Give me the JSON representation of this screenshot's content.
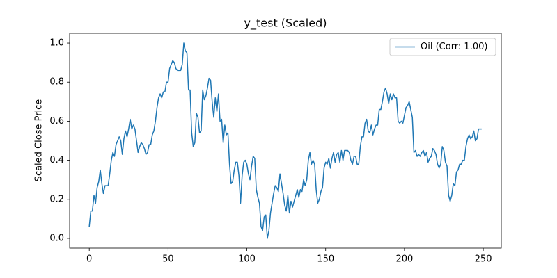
{
  "chart_data": {
    "type": "line",
    "title": "y_test (Scaled)",
    "ylabel": "Scaled Close Price",
    "x": [
      0,
      1,
      2,
      3,
      4,
      5,
      6,
      7,
      8,
      9,
      10,
      11,
      12,
      13,
      14,
      15,
      16,
      17,
      18,
      19,
      20,
      21,
      22,
      23,
      24,
      25,
      26,
      27,
      28,
      29,
      30,
      31,
      32,
      33,
      34,
      35,
      36,
      37,
      38,
      39,
      40,
      41,
      42,
      43,
      44,
      45,
      46,
      47,
      48,
      49,
      50,
      51,
      52,
      53,
      54,
      55,
      56,
      57,
      58,
      59,
      60,
      61,
      62,
      63,
      64,
      65,
      66,
      67,
      68,
      69,
      70,
      71,
      72,
      73,
      74,
      75,
      76,
      77,
      78,
      79,
      80,
      81,
      82,
      83,
      84,
      85,
      86,
      87,
      88,
      89,
      90,
      91,
      92,
      93,
      94,
      95,
      96,
      97,
      98,
      99,
      100,
      101,
      102,
      103,
      104,
      105,
      106,
      107,
      108,
      109,
      110,
      111,
      112,
      113,
      114,
      115,
      116,
      117,
      118,
      119,
      120,
      121,
      122,
      123,
      124,
      125,
      126,
      127,
      128,
      129,
      130,
      131,
      132,
      133,
      134,
      135,
      136,
      137,
      138,
      139,
      140,
      141,
      142,
      143,
      144,
      145,
      146,
      147,
      148,
      149,
      150,
      151,
      152,
      153,
      154,
      155,
      156,
      157,
      158,
      159,
      160,
      161,
      162,
      163,
      164,
      165,
      166,
      167,
      168,
      169,
      170,
      171,
      172,
      173,
      174,
      175,
      176,
      177,
      178,
      179,
      180,
      181,
      182,
      183,
      184,
      185,
      186,
      187,
      188,
      189,
      190,
      191,
      192,
      193,
      194,
      195,
      196,
      197,
      198,
      199,
      200,
      201,
      202,
      203,
      204,
      205,
      206,
      207,
      208,
      209,
      210,
      211,
      212,
      213,
      214,
      215,
      216,
      217,
      218,
      219,
      220,
      221,
      222,
      223,
      224,
      225,
      226,
      227,
      228,
      229,
      230,
      231,
      232,
      233,
      234,
      235,
      236,
      237,
      238,
      239,
      240,
      241,
      242,
      243,
      244,
      245,
      246,
      247,
      248,
      249
    ],
    "series": [
      {
        "name": "Oil (Corr: 1.00)",
        "color": "#1f77b4",
        "values": [
          0.06,
          0.14,
          0.14,
          0.22,
          0.18,
          0.26,
          0.29,
          0.35,
          0.28,
          0.23,
          0.27,
          0.27,
          0.27,
          0.33,
          0.4,
          0.44,
          0.42,
          0.48,
          0.5,
          0.52,
          0.5,
          0.43,
          0.51,
          0.55,
          0.52,
          0.56,
          0.61,
          0.56,
          0.58,
          0.56,
          0.5,
          0.44,
          0.47,
          0.49,
          0.48,
          0.46,
          0.43,
          0.44,
          0.48,
          0.48,
          0.53,
          0.55,
          0.6,
          0.67,
          0.72,
          0.74,
          0.72,
          0.75,
          0.75,
          0.8,
          0.8,
          0.87,
          0.89,
          0.91,
          0.9,
          0.87,
          0.86,
          0.86,
          0.86,
          0.89,
          1.0,
          0.96,
          0.95,
          0.76,
          0.76,
          0.54,
          0.47,
          0.49,
          0.64,
          0.62,
          0.54,
          0.55,
          0.76,
          0.71,
          0.73,
          0.77,
          0.82,
          0.81,
          0.7,
          0.62,
          0.72,
          0.65,
          0.74,
          0.6,
          0.61,
          0.49,
          0.58,
          0.53,
          0.54,
          0.38,
          0.28,
          0.29,
          0.35,
          0.39,
          0.39,
          0.32,
          0.18,
          0.32,
          0.39,
          0.4,
          0.38,
          0.33,
          0.3,
          0.37,
          0.42,
          0.41,
          0.25,
          0.21,
          0.18,
          0.06,
          0.04,
          0.11,
          0.12,
          0.0,
          0.04,
          0.13,
          0.18,
          0.23,
          0.27,
          0.26,
          0.24,
          0.33,
          0.28,
          0.23,
          0.17,
          0.14,
          0.22,
          0.13,
          0.19,
          0.16,
          0.19,
          0.22,
          0.25,
          0.21,
          0.25,
          0.24,
          0.3,
          0.27,
          0.3,
          0.4,
          0.44,
          0.38,
          0.4,
          0.38,
          0.25,
          0.18,
          0.2,
          0.24,
          0.26,
          0.36,
          0.39,
          0.38,
          0.41,
          0.36,
          0.41,
          0.44,
          0.39,
          0.43,
          0.44,
          0.39,
          0.45,
          0.4,
          0.45,
          0.45,
          0.45,
          0.44,
          0.4,
          0.38,
          0.42,
          0.42,
          0.38,
          0.38,
          0.47,
          0.52,
          0.52,
          0.59,
          0.61,
          0.55,
          0.54,
          0.58,
          0.53,
          0.56,
          0.58,
          0.58,
          0.66,
          0.66,
          0.7,
          0.75,
          0.77,
          0.74,
          0.69,
          0.74,
          0.71,
          0.74,
          0.72,
          0.72,
          0.6,
          0.59,
          0.6,
          0.59,
          0.63,
          0.67,
          0.68,
          0.7,
          0.66,
          0.62,
          0.44,
          0.45,
          0.42,
          0.43,
          0.42,
          0.44,
          0.45,
          0.42,
          0.44,
          0.39,
          0.41,
          0.42,
          0.46,
          0.45,
          0.43,
          0.38,
          0.36,
          0.38,
          0.47,
          0.45,
          0.39,
          0.37,
          0.22,
          0.19,
          0.22,
          0.28,
          0.27,
          0.34,
          0.35,
          0.38,
          0.38,
          0.4,
          0.4,
          0.47,
          0.51,
          0.53,
          0.51,
          0.52,
          0.55,
          0.5,
          0.51,
          0.56,
          0.56,
          0.56
        ]
      }
    ],
    "xlim": [
      -12.45,
      261.45
    ],
    "ylim": [
      -0.05,
      1.05
    ],
    "xticks": [
      0,
      50,
      100,
      150,
      200,
      250
    ],
    "yticks": [
      {
        "value": 0,
        "label": "0.0"
      },
      {
        "value": 0.2,
        "label": "0.2"
      },
      {
        "value": 0.4,
        "label": "0.4"
      },
      {
        "value": 0.6,
        "label": "0.6"
      },
      {
        "value": 0.8,
        "label": "0.8"
      },
      {
        "value": 1,
        "label": "1.0"
      }
    ],
    "grid": false,
    "legend": "upper right"
  }
}
